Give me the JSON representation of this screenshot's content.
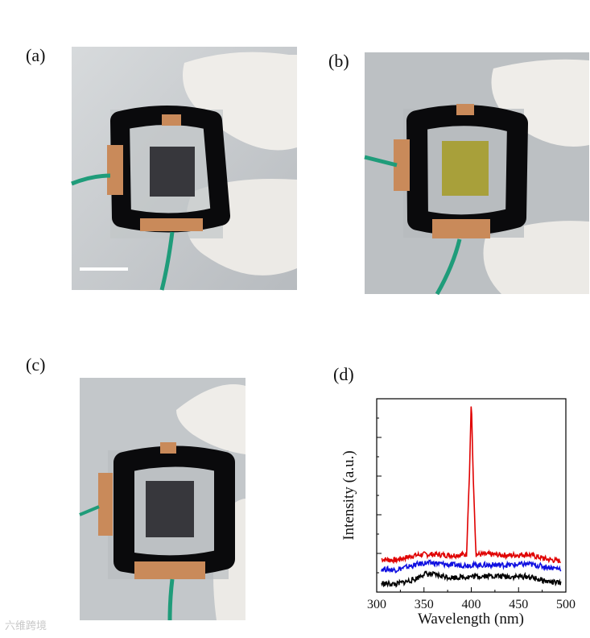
{
  "panels": {
    "a": {
      "label": "(a)"
    },
    "b": {
      "label": "(b)"
    },
    "c": {
      "label": "(c)"
    },
    "d": {
      "label": "(d)"
    }
  },
  "photos": {
    "a": {
      "description_icon": "device-photo",
      "film_color": "#3a3a40"
    },
    "b": {
      "description_icon": "device-photo",
      "film_color": "#a8a03a"
    },
    "c": {
      "description_icon": "device-photo",
      "film_color": "#3a3a40"
    }
  },
  "colors": {
    "sealant": "#0a0a0c",
    "copper": "#c98a5a",
    "wire": "#1f9c7a",
    "glove": "#eceae6"
  },
  "chart_data": {
    "type": "line",
    "xlabel": "Wavelength (nm)",
    "ylabel": "Intensity (a.u.)",
    "xlim": [
      300,
      500
    ],
    "ylim": [
      0,
      10
    ],
    "xticks": [
      300,
      350,
      400,
      450,
      500
    ],
    "series": [
      {
        "color": "#e00000",
        "x": [
          305,
          320,
          340,
          350,
          360,
          380,
          395,
          398,
          400,
          402,
          405,
          420,
          440,
          460,
          480,
          495
        ],
        "y": [
          1.7,
          1.65,
          1.9,
          1.95,
          1.95,
          1.9,
          1.95,
          6.0,
          10.0,
          6.0,
          1.95,
          1.95,
          1.9,
          1.95,
          1.7,
          1.6
        ]
      },
      {
        "color": "#1010e0",
        "x": [
          305,
          320,
          340,
          350,
          360,
          380,
          400,
          420,
          440,
          460,
          480,
          495
        ],
        "y": [
          1.2,
          1.15,
          1.4,
          1.5,
          1.5,
          1.4,
          1.4,
          1.4,
          1.4,
          1.45,
          1.3,
          1.2
        ]
      },
      {
        "color": "#000000",
        "x": [
          305,
          320,
          340,
          350,
          360,
          380,
          400,
          420,
          440,
          460,
          480,
          495
        ],
        "y": [
          0.45,
          0.4,
          0.65,
          0.95,
          0.9,
          0.75,
          0.8,
          0.85,
          0.8,
          0.8,
          0.55,
          0.45
        ]
      }
    ]
  },
  "watermark": "六维跨境"
}
